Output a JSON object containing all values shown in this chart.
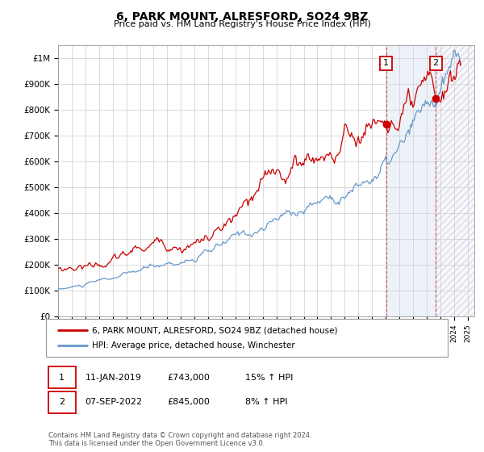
{
  "title": "6, PARK MOUNT, ALRESFORD, SO24 9BZ",
  "subtitle": "Price paid vs. HM Land Registry's House Price Index (HPI)",
  "legend_line1": "6, PARK MOUNT, ALRESFORD, SO24 9BZ (detached house)",
  "legend_line2": "HPI: Average price, detached house, Winchester",
  "annotation1_date": "11-JAN-2019",
  "annotation1_price": "£743,000",
  "annotation1_hpi": "15% ↑ HPI",
  "annotation2_date": "07-SEP-2022",
  "annotation2_price": "£845,000",
  "annotation2_hpi": "8% ↑ HPI",
  "footnote": "Contains HM Land Registry data © Crown copyright and database right 2024.\nThis data is licensed under the Open Government Licence v3.0.",
  "line_color_red": "#cc0000",
  "line_color_blue": "#6699cc",
  "background_color": "#ffffff",
  "grid_color": "#cccccc",
  "sale1_x": 2019.03,
  "sale1_value": 743000,
  "sale2_x": 2022.67,
  "sale2_value": 845000,
  "xmin": 1995,
  "xmax": 2025.5,
  "ylim_min": 0,
  "ylim_max": 1050000
}
